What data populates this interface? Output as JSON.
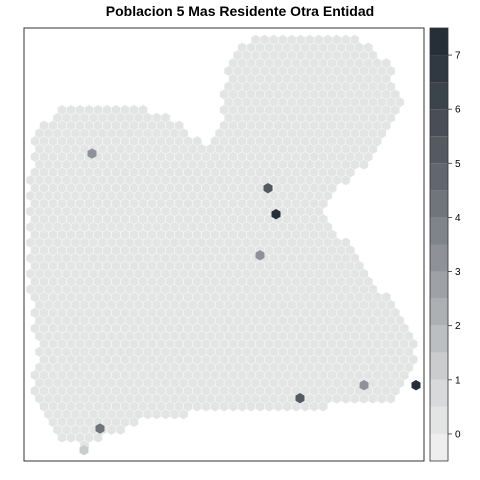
{
  "chart_data": {
    "type": "heatmap",
    "title": "Poblacion 5 Mas Residente Otra Entidad",
    "xlabel": "",
    "ylabel": "",
    "background_value": 0,
    "highlighted_cells": [
      {
        "x": 0.17,
        "y": 0.71,
        "value": 3
      },
      {
        "x": 0.61,
        "y": 0.63,
        "value": 5
      },
      {
        "x": 0.63,
        "y": 0.57,
        "value": 7
      },
      {
        "x": 0.59,
        "y": 0.475,
        "value": 3
      },
      {
        "x": 0.85,
        "y": 0.175,
        "value": 3
      },
      {
        "x": 0.98,
        "y": 0.175,
        "value": 7
      },
      {
        "x": 0.69,
        "y": 0.145,
        "value": 5
      },
      {
        "x": 0.19,
        "y": 0.075,
        "value": 4
      },
      {
        "x": 0.15,
        "y": 0.025,
        "value": 1
      }
    ],
    "legend": {
      "position": "right",
      "ticks": [
        0,
        1,
        2,
        3,
        4,
        5,
        6,
        7
      ],
      "range": [
        -0.5,
        7.5
      ],
      "bins": 16,
      "colors": [
        "#edeeed",
        "#e3e4e4",
        "#d7d9da",
        "#cacccd",
        "#bcbfc1",
        "#adb0b3",
        "#9ea2a6",
        "#8e9298",
        "#7f848a",
        "#70757c",
        "#61676e",
        "#535a62",
        "#474e56",
        "#3b434b",
        "#303841",
        "#262e37"
      ]
    }
  }
}
